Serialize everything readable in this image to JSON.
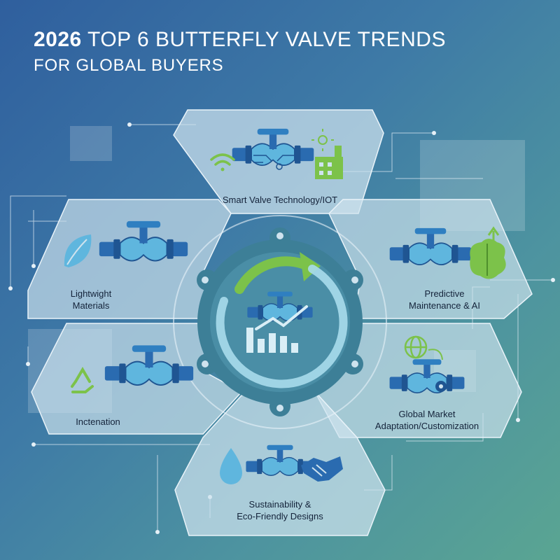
{
  "title": {
    "year": "2026",
    "line1_rest": "TOP 6 BUTTERFLY VALVE TRENDS",
    "line2": "FOR GLOBAL BUYERS"
  },
  "segments": [
    {
      "id": "top",
      "label_lines": [
        "Smart Valve Technology/IOT"
      ],
      "icons": [
        "valve-icon",
        "wifi-icon",
        "factory-icon",
        "sun-icon"
      ]
    },
    {
      "id": "upper-left",
      "label_lines": [
        "Lightwight",
        "Materials"
      ],
      "icons": [
        "leaf-icon",
        "valve-icon"
      ]
    },
    {
      "id": "upper-right",
      "label_lines": [
        "Predictive",
        "Maintenance & AI"
      ],
      "icons": [
        "valve-icon",
        "brain-icon"
      ]
    },
    {
      "id": "lower-left",
      "label_lines": [
        "Inctenation"
      ],
      "icons": [
        "recycle-icon",
        "valve-icon"
      ]
    },
    {
      "id": "lower-right",
      "label_lines": [
        "Global Market",
        "Adaptation/Customization"
      ],
      "icons": [
        "globe-icon",
        "valve-icon"
      ]
    },
    {
      "id": "bottom",
      "label_lines": [
        "Sustainability &",
        "Eco-Friendly Designs"
      ],
      "icons": [
        "water-drop-icon",
        "valve-icon",
        "handshake-icon"
      ]
    }
  ],
  "hub": {
    "icons": [
      "cycle-arrow-icon",
      "valve-icon",
      "bar-chart-icon",
      "trend-arrow-icon"
    ]
  },
  "colors": {
    "accent_blue": "#2a6bb0",
    "accent_green": "#7cc24a",
    "panel_fill": "#cfe3ee",
    "hub_fill": "#3d7f97"
  }
}
